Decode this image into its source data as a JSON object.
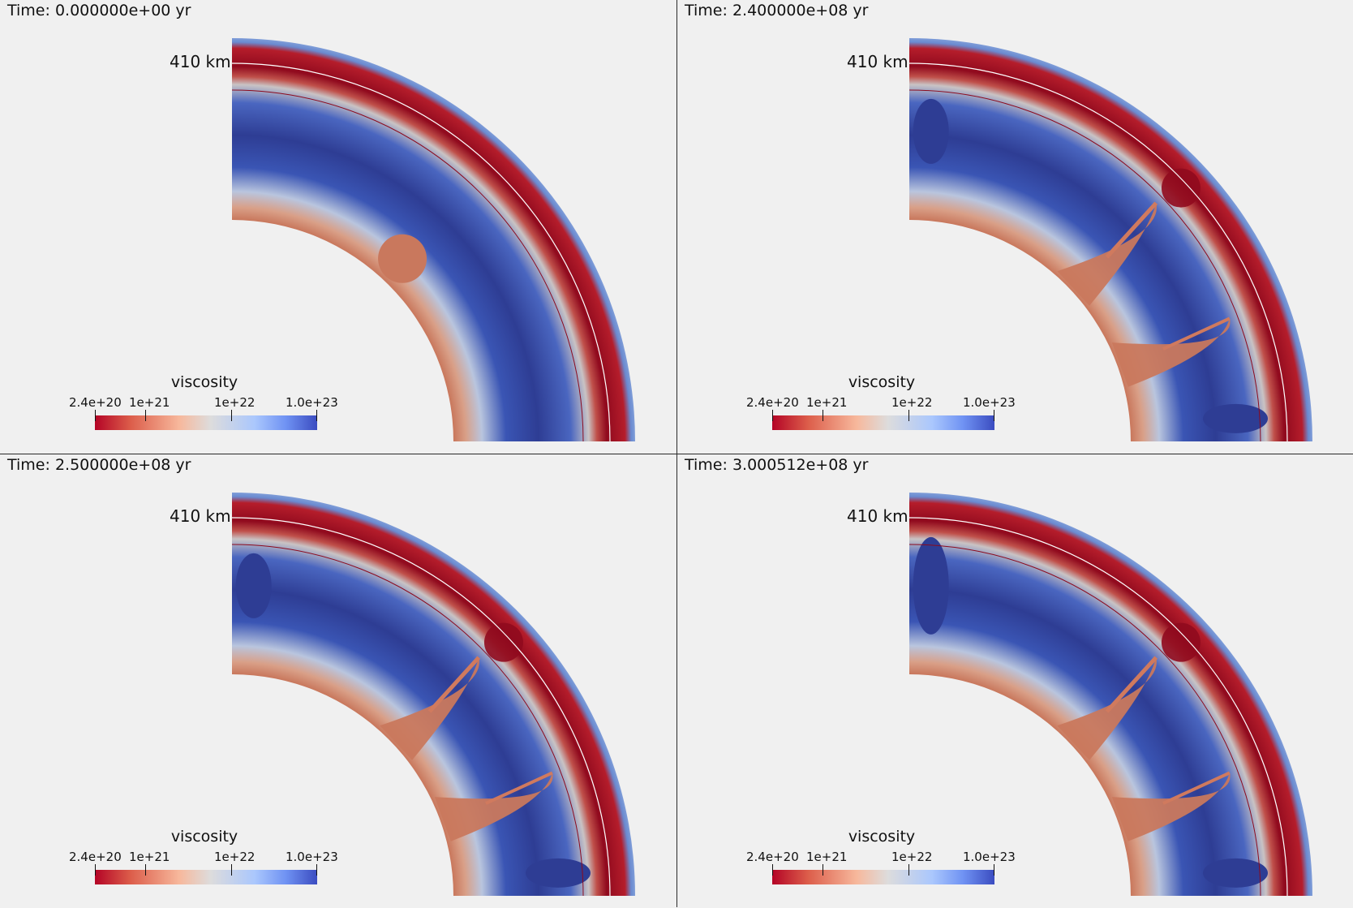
{
  "panels": [
    {
      "time": "Time: 0.000000e+00 yr",
      "stage": 0
    },
    {
      "time": "Time: 2.400000e+08 yr",
      "stage": 1
    },
    {
      "time": "Time: 2.500000e+08 yr",
      "stage": 2
    },
    {
      "time": "Time: 3.000512e+08 yr",
      "stage": 3
    }
  ],
  "depth_label": "410 km",
  "colorbar": {
    "title": "viscosity",
    "ticks": [
      "2.4e+20",
      "1e+21",
      "1e+22",
      "1.0e+23"
    ],
    "colors": [
      "#b40426",
      "#dc5d4a",
      "#f7b89c",
      "#dddcdc",
      "#aac7fd",
      "#6f92f3",
      "#3b4cc0"
    ]
  },
  "colors": {
    "low_viscosity_red": "#900a1e",
    "high_viscosity_blue": "#2e3d94",
    "core_salmon": "#c9785d",
    "contour": "#8b0a1e",
    "line_410": "#ffffff"
  }
}
